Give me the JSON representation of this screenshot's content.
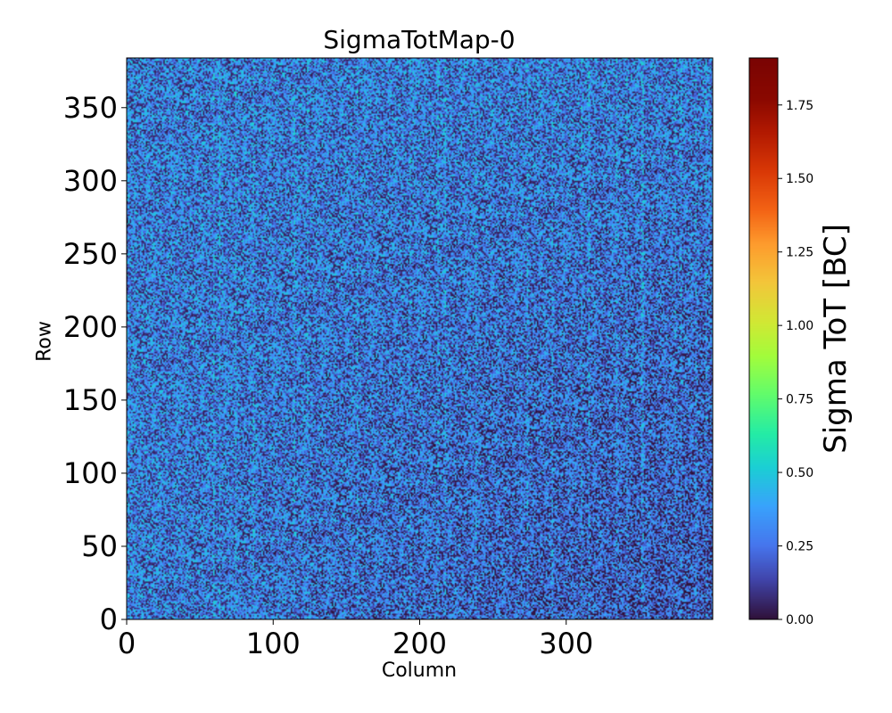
{
  "chart_data": {
    "type": "heatmap",
    "title": "SigmaTotMap-0",
    "xlabel": "Column",
    "ylabel": "Row",
    "colorbar_label": "Sigma ToT [BC]",
    "colormap": "turbo",
    "x_range": [
      0,
      400
    ],
    "y_range": [
      0,
      384
    ],
    "x_ticks": [
      0,
      100,
      200,
      300
    ],
    "x_tick_labels": [
      "0",
      "100",
      "200",
      "300"
    ],
    "y_ticks": [
      0,
      50,
      100,
      150,
      200,
      250,
      300,
      350
    ],
    "y_tick_labels": [
      "0",
      "50",
      "100",
      "150",
      "200",
      "250",
      "300",
      "350"
    ],
    "colorbar_range": [
      0,
      1.91
    ],
    "colorbar_ticks": [
      0.0,
      0.25,
      0.5,
      0.75,
      1.0,
      1.25,
      1.5,
      1.75
    ],
    "colorbar_tick_labels": [
      "0.00",
      "0.25",
      "0.50",
      "0.75",
      "1.00",
      "1.25",
      "1.50",
      "1.75"
    ],
    "typical_value": 0.4,
    "value_spread": [
      0.0,
      0.55
    ],
    "grid": false,
    "legend": "none"
  }
}
